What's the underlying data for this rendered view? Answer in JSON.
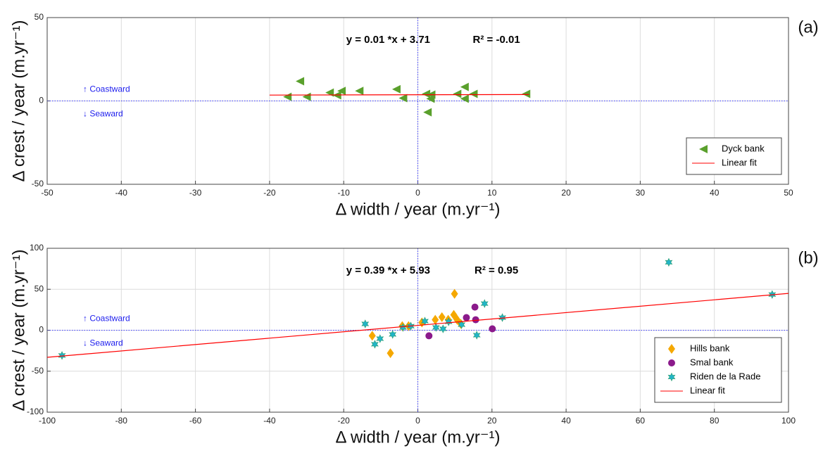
{
  "chart_data": [
    {
      "type": "scatter",
      "panel_label": "(a)",
      "equation": "y = 0.01 *x + 3.71",
      "r_squared": "R² = -0.01",
      "up_label": "↑ Coastward",
      "down_label": "↓ Seaward",
      "xlabel": "Δ width / year (m.yr⁻¹)",
      "ylabel": "Δ crest / year (m.yr⁻¹)",
      "xlim": [
        -50,
        50
      ],
      "xticks": [
        -50,
        -40,
        -30,
        -20,
        -10,
        0,
        10,
        20,
        30,
        40,
        50
      ],
      "ylim": [
        -50,
        50
      ],
      "yticks": [
        -50,
        0,
        50
      ],
      "grid": true,
      "legend": "lower right",
      "series": [
        {
          "name": "Dyck bank",
          "color": "#5aa02c",
          "marker": "triangle-left",
          "x": [
            -17.6,
            -15.9,
            -15.0,
            -11.9,
            -10.9,
            -10.3,
            -7.9,
            -2.9,
            -2.0,
            1.1,
            1.3,
            1.8,
            1.7,
            5.3,
            6.3,
            6.3,
            7.5,
            14.6
          ],
          "values": [
            2.5,
            11.8,
            2.5,
            5,
            3.4,
            6,
            6,
            7,
            1.7,
            4.2,
            -6.8,
            3.8,
            1.3,
            4.2,
            8.4,
            1.3,
            4.2,
            4.2
          ]
        },
        {
          "name": "Linear fit",
          "color": "#ff0000",
          "marker": "line",
          "x": [
            -20,
            15
          ],
          "values": [
            3.51,
            3.86
          ]
        }
      ]
    },
    {
      "type": "scatter",
      "panel_label": "(b)",
      "equation": "y = 0.39 *x + 5.93",
      "r_squared": "R² = 0.95",
      "up_label": "↑ Coastward",
      "down_label": "↓ Seaward",
      "xlabel": "Δ width / year (m.yr⁻¹)",
      "ylabel": "Δ crest / year (m.yr⁻¹)",
      "xlim": [
        -100,
        100
      ],
      "xticks": [
        -100,
        -80,
        -60,
        -40,
        -20,
        0,
        20,
        40,
        60,
        80,
        100
      ],
      "ylim": [
        -100,
        100
      ],
      "yticks": [
        -100,
        -50,
        0,
        50,
        100
      ],
      "grid": true,
      "legend": "lower right",
      "series": [
        {
          "name": "Hills bank",
          "color": "#f5a800",
          "marker": "diamond",
          "x": [
            -12.3,
            -7.4,
            -4.2,
            -2.5,
            1.1,
            4.7,
            6.5,
            8.2,
            9.7,
            9.9,
            10.6,
            11.6
          ],
          "values": [
            -6.8,
            -28,
            5,
            5,
            9.4,
            12.8,
            16,
            12.8,
            18.8,
            44.4,
            12.8,
            7.7
          ]
        },
        {
          "name": "Smal bank",
          "color": "#8b1a8b",
          "marker": "circle",
          "x": [
            3.0,
            13.1,
            15.4,
            15.6,
            20.1
          ],
          "values": [
            -6.8,
            15.4,
            28.2,
            12.8,
            1.7
          ]
        },
        {
          "name": "Riden de la Rade",
          "color": "#22b5c8",
          "marker": "hexagram",
          "x": [
            -96.0,
            -14.2,
            -11.6,
            -10.2,
            -6.8,
            -4.0,
            -1.9,
            1.9,
            4.9,
            6.8,
            8.3,
            11.8,
            15.9,
            18.0,
            22.8,
            67.7,
            95.6
          ],
          "values": [
            -30.8,
            7.7,
            -17.1,
            -10.3,
            -5.1,
            3.4,
            5,
            11.1,
            3.4,
            1.7,
            10.3,
            6.8,
            -6,
            32.5,
            15.4,
            82.9,
            43.6
          ]
        },
        {
          "name": "Linear fit",
          "color": "#ff0000",
          "marker": "line",
          "x": [
            -100,
            100
          ],
          "values": [
            -33.07,
            44.93
          ]
        }
      ]
    }
  ]
}
